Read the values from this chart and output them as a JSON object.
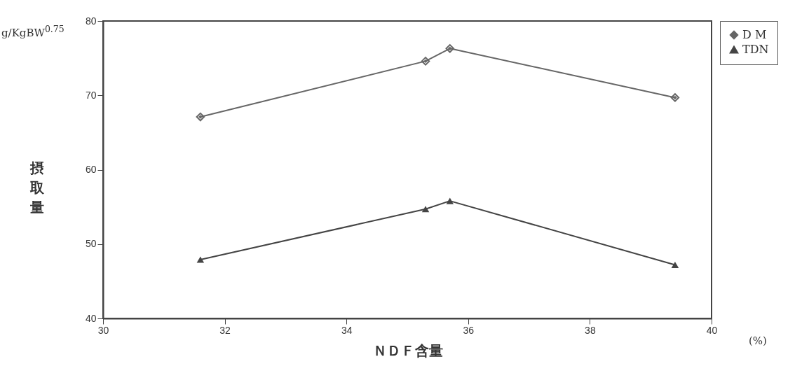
{
  "chart_data": {
    "type": "line",
    "xlabel": "ＮＤＦ含量",
    "ylabel": "摂取量",
    "annotations": [
      "g/KgBW$^{0.75}$",
      "(%)"
    ],
    "x": [
      31.6,
      35.3,
      35.7,
      39.4
    ],
    "series": [
      {
        "name": "D M",
        "color": "#666666",
        "marker": "diamond",
        "values": [
          67.1,
          74.6,
          76.3,
          69.7
        ]
      },
      {
        "name": "TDN",
        "color": "#444444",
        "marker": "triangle",
        "values": [
          47.9,
          54.7,
          55.8,
          47.2
        ]
      }
    ],
    "xlim": [
      30,
      40
    ],
    "xticks": [
      30,
      32,
      34,
      36,
      38,
      40
    ],
    "ylim": [
      40,
      80
    ],
    "yticks": [
      40,
      50,
      60,
      70,
      80
    ],
    "grid": false,
    "legend": "right"
  }
}
